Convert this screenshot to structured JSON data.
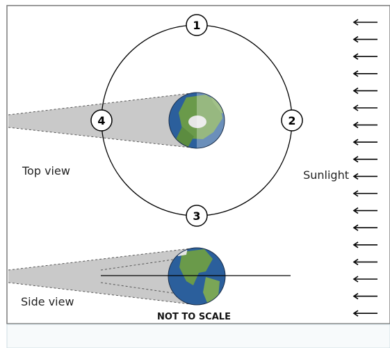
{
  "diagram": {
    "positions": [
      "1",
      "2",
      "3",
      "4"
    ],
    "labels": {
      "top_view": "Top view",
      "side_view": "Side view",
      "sunlight": "Sunlight",
      "scale_note": "NOT TO SCALE"
    },
    "sunlight_arrow_count": 18,
    "colors": {
      "ocean": "#2b5f9c",
      "land": "#6a9a4a",
      "shadow": "#c9c9c9",
      "ice": "#e6e6e6"
    }
  },
  "lower_panel": {
    "background": "#f7fafb"
  }
}
